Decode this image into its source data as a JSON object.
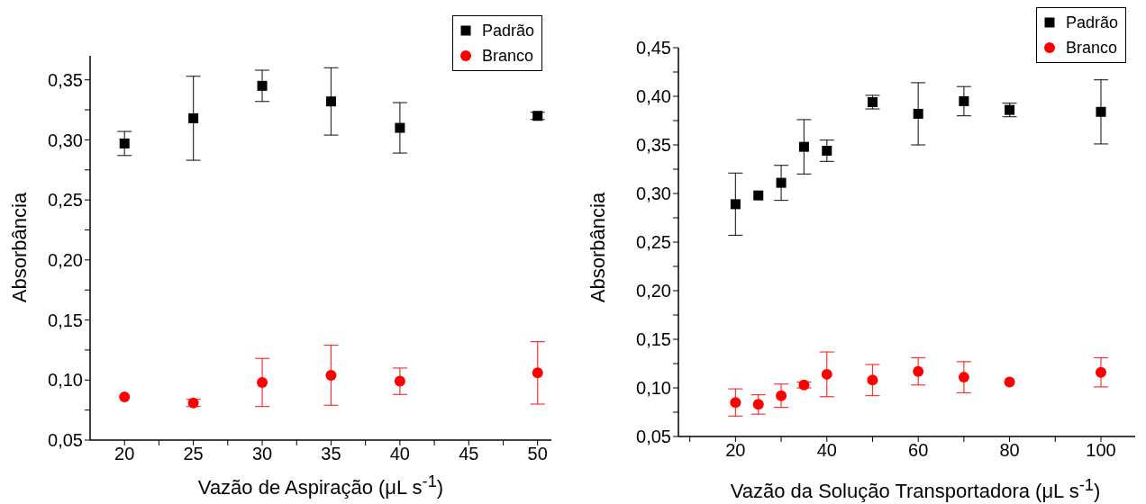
{
  "chart_data": [
    {
      "type": "scatter",
      "xlabel": "Vazão de Aspiração (μL s$^{-1}$)",
      "ylabel": "Absorbância",
      "xlim": [
        17.5,
        51
      ],
      "ylim": [
        0.05,
        0.37
      ],
      "xticks": [
        20,
        {
          "value": 22.5,
          "label": null
        },
        25,
        {
          "value": 27.5,
          "label": null
        },
        30,
        {
          "value": 32.5,
          "label": null
        },
        35,
        {
          "value": 37.5,
          "label": null
        },
        40,
        {
          "value": 42.5,
          "label": null
        },
        45,
        {
          "value": 47.5,
          "label": null
        },
        50
      ],
      "yticks": [
        {
          "value": 0.05,
          "label": "0,05"
        },
        {
          "value": 0.075,
          "label": null
        },
        {
          "value": 0.1,
          "label": "0,10"
        },
        {
          "value": 0.125,
          "label": null
        },
        {
          "value": 0.15,
          "label": "0,15"
        },
        {
          "value": 0.175,
          "label": null
        },
        {
          "value": 0.2,
          "label": "0,20"
        },
        {
          "value": 0.225,
          "label": null
        },
        {
          "value": 0.25,
          "label": "0,25"
        },
        {
          "value": 0.275,
          "label": null
        },
        {
          "value": 0.3,
          "label": "0,30"
        },
        {
          "value": 0.325,
          "label": null
        },
        {
          "value": 0.35,
          "label": "0,35"
        }
      ],
      "legend": "top right",
      "series": [
        {
          "name": "Padrão",
          "color": "#000000",
          "marker": "square",
          "x": [
            20,
            25,
            30,
            35,
            40,
            50
          ],
          "values": [
            0.297,
            0.318,
            0.345,
            0.332,
            0.31,
            0.32
          ],
          "errors": [
            0.01,
            0.035,
            0.013,
            0.028,
            0.021,
            0.003
          ]
        },
        {
          "name": "Branco",
          "color": "#ff0000",
          "marker": "circle",
          "x": [
            20,
            25,
            30,
            35,
            40,
            50
          ],
          "values": [
            0.086,
            0.081,
            0.098,
            0.104,
            0.099,
            0.106
          ],
          "errors": [
            null,
            0.003,
            0.02,
            0.025,
            0.011,
            0.026
          ]
        }
      ]
    },
    {
      "type": "scatter",
      "xlabel": "Vazão da Solução Transportadora (μL s$^{-1}$)",
      "ylabel": "Absorbância",
      "xlim": [
        7.5,
        107.5
      ],
      "ylim": [
        0.05,
        0.45
      ],
      "xticks": [
        {
          "value": 10,
          "label": null
        },
        20,
        {
          "value": 30,
          "label": null
        },
        40,
        {
          "value": 50,
          "label": null
        },
        60,
        {
          "value": 70,
          "label": null
        },
        80,
        {
          "value": 90,
          "label": null
        },
        100
      ],
      "yticks": [
        {
          "value": 0.05,
          "label": "0,05"
        },
        {
          "value": 0.075,
          "label": null
        },
        {
          "value": 0.1,
          "label": "0,10"
        },
        {
          "value": 0.125,
          "label": null
        },
        {
          "value": 0.15,
          "label": "0,15"
        },
        {
          "value": 0.175,
          "label": null
        },
        {
          "value": 0.2,
          "label": "0,20"
        },
        {
          "value": 0.225,
          "label": null
        },
        {
          "value": 0.25,
          "label": "0,25"
        },
        {
          "value": 0.275,
          "label": null
        },
        {
          "value": 0.3,
          "label": "0,30"
        },
        {
          "value": 0.325,
          "label": null
        },
        {
          "value": 0.35,
          "label": "0,35"
        },
        {
          "value": 0.375,
          "label": null
        },
        {
          "value": 0.4,
          "label": "0,40"
        },
        {
          "value": 0.425,
          "label": null
        },
        {
          "value": 0.45,
          "label": "0,45"
        }
      ],
      "legend": "top right",
      "series": [
        {
          "name": "Padrão",
          "color": "#000000",
          "marker": "square",
          "x": [
            20,
            25,
            30,
            35,
            40,
            50,
            60,
            70,
            80,
            100
          ],
          "values": [
            0.289,
            0.298,
            0.311,
            0.348,
            0.344,
            0.394,
            0.382,
            0.395,
            0.386,
            0.384
          ],
          "errors": [
            0.032,
            null,
            0.018,
            0.028,
            0.011,
            0.007,
            0.032,
            0.015,
            0.007,
            0.033
          ]
        },
        {
          "name": "Branco",
          "color": "#ff0000",
          "marker": "circle",
          "x": [
            20,
            25,
            30,
            35,
            40,
            50,
            60,
            70,
            80,
            100
          ],
          "values": [
            0.085,
            0.083,
            0.092,
            0.103,
            0.114,
            0.108,
            0.117,
            0.111,
            0.106,
            0.116
          ],
          "errors": [
            0.014,
            0.01,
            0.012,
            0.003,
            0.023,
            0.016,
            0.014,
            0.016,
            null,
            0.015
          ]
        }
      ]
    }
  ]
}
